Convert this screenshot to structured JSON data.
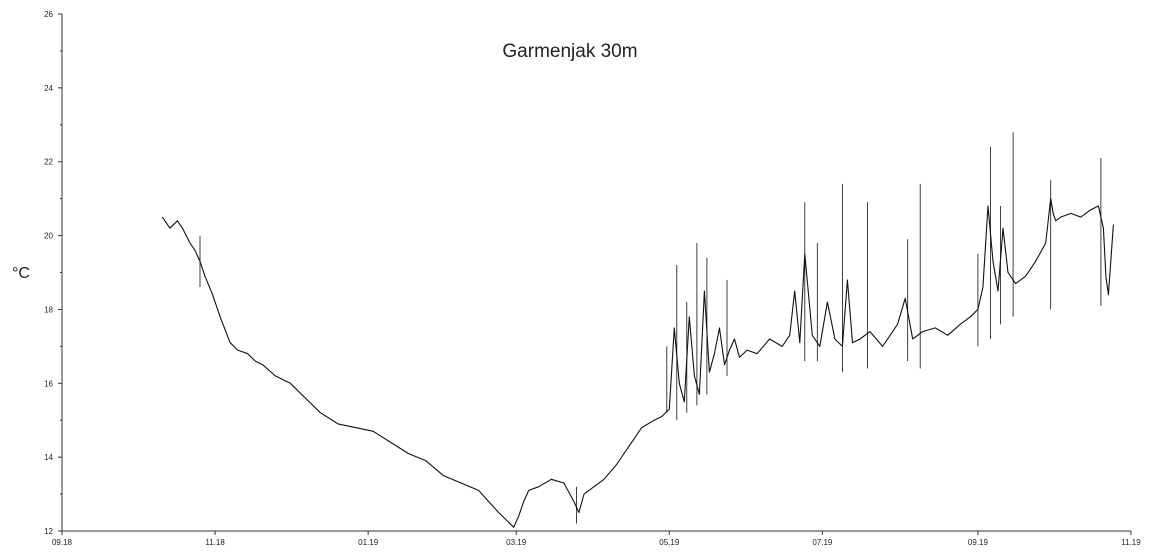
{
  "chart_data": {
    "type": "line",
    "title": "Garmenjak 30m",
    "xlabel": "",
    "ylabel": "°C",
    "x_ticks": [
      "09.18",
      "11.18",
      "01.19",
      "03.19",
      "05.19",
      "07.19",
      "09.19",
      "11.19"
    ],
    "xlim": [
      "2018-09-01",
      "2019-11-01"
    ],
    "y_ticks": [
      "12",
      "14",
      "16",
      "18",
      "20",
      "22",
      "24",
      "26"
    ],
    "ylim": [
      12,
      26
    ],
    "grid": false,
    "colors": {
      "line": "#111111",
      "axis": "#333333"
    },
    "series": [
      {
        "x": [
          "2018-10-11",
          "2018-10-14",
          "2018-10-17",
          "2018-10-19",
          "2018-10-22",
          "2018-10-24",
          "2018-10-26",
          "2018-10-28",
          "2018-10-31",
          "2018-11-03",
          "2018-11-07",
          "2018-11-10",
          "2018-11-14",
          "2018-11-17",
          "2018-11-20",
          "2018-11-25",
          "2018-12-01",
          "2018-12-07",
          "2018-12-13",
          "2018-12-20",
          "2018-12-27",
          "2019-01-03",
          "2019-01-10",
          "2019-01-17",
          "2019-01-24",
          "2019-01-31",
          "2019-02-07",
          "2019-02-14",
          "2019-02-18",
          "2019-02-22",
          "2019-02-25",
          "2019-02-28",
          "2019-03-02",
          "2019-03-04",
          "2019-03-06",
          "2019-03-10",
          "2019-03-15",
          "2019-03-20",
          "2019-03-24",
          "2019-03-26",
          "2019-03-28",
          "2019-04-01",
          "2019-04-05",
          "2019-04-10",
          "2019-04-15",
          "2019-04-20",
          "2019-04-25",
          "2019-04-28",
          "2019-05-01",
          "2019-05-03",
          "2019-05-05",
          "2019-05-07",
          "2019-05-09",
          "2019-05-11",
          "2019-05-13",
          "2019-05-15",
          "2019-05-17",
          "2019-05-19",
          "2019-05-21",
          "2019-05-23",
          "2019-05-25",
          "2019-05-27",
          "2019-05-29",
          "2019-06-01",
          "2019-06-05",
          "2019-06-10",
          "2019-06-15",
          "2019-06-18",
          "2019-06-20",
          "2019-06-22",
          "2019-06-24",
          "2019-06-27",
          "2019-06-30",
          "2019-07-03",
          "2019-07-06",
          "2019-07-09",
          "2019-07-11",
          "2019-07-13",
          "2019-07-16",
          "2019-07-20",
          "2019-07-25",
          "2019-07-28",
          "2019-07-31",
          "2019-08-03",
          "2019-08-06",
          "2019-08-10",
          "2019-08-15",
          "2019-08-20",
          "2019-08-25",
          "2019-08-29",
          "2019-09-01",
          "2019-09-03",
          "2019-09-05",
          "2019-09-07",
          "2019-09-09",
          "2019-09-11",
          "2019-09-13",
          "2019-09-16",
          "2019-09-20",
          "2019-09-24",
          "2019-09-28",
          "2019-09-30",
          "2019-10-01",
          "2019-10-02",
          "2019-10-04",
          "2019-10-08",
          "2019-10-12",
          "2019-10-16",
          "2019-10-19",
          "2019-10-21",
          "2019-10-22",
          "2019-10-23",
          "2019-10-25"
        ],
        "y": [
          20.5,
          20.2,
          20.4,
          20.2,
          19.8,
          19.6,
          19.3,
          18.9,
          18.4,
          17.8,
          17.1,
          16.9,
          16.8,
          16.6,
          16.5,
          16.2,
          16.0,
          15.6,
          15.2,
          14.9,
          14.8,
          14.7,
          14.4,
          14.1,
          13.9,
          13.5,
          13.3,
          13.1,
          12.8,
          12.5,
          12.3,
          12.1,
          12.4,
          12.8,
          13.1,
          13.2,
          13.4,
          13.3,
          12.8,
          12.5,
          13.0,
          13.2,
          13.4,
          13.8,
          14.3,
          14.8,
          15.0,
          15.1,
          15.3,
          17.5,
          16.0,
          15.5,
          17.8,
          16.2,
          15.7,
          18.5,
          16.3,
          16.8,
          17.5,
          16.5,
          16.9,
          17.2,
          16.7,
          16.9,
          16.8,
          17.2,
          17.0,
          17.3,
          18.5,
          17.1,
          19.5,
          17.3,
          17.0,
          18.2,
          17.2,
          17.0,
          18.8,
          17.1,
          17.2,
          17.4,
          17.0,
          17.3,
          17.6,
          18.3,
          17.2,
          17.4,
          17.5,
          17.3,
          17.6,
          17.8,
          18.0,
          18.6,
          20.8,
          19.3,
          18.5,
          20.2,
          19.0,
          18.7,
          18.9,
          19.3,
          19.8,
          21.0,
          20.6,
          20.4,
          20.5,
          20.6,
          20.5,
          20.7,
          20.8,
          20.2,
          18.9,
          18.4,
          20.3
        ],
        "line_width": 1.1
      },
      {
        "x": [
          "2018-10-26",
          "2018-10-26",
          "2019-03-25",
          "2019-03-25",
          "2019-04-30",
          "2019-04-30",
          "2019-05-04",
          "2019-05-04",
          "2019-05-08",
          "2019-05-08",
          "2019-05-12",
          "2019-05-12",
          "2019-05-16",
          "2019-05-16",
          "2019-05-24",
          "2019-05-24",
          "2019-06-24",
          "2019-06-24",
          "2019-06-29",
          "2019-06-29",
          "2019-07-09",
          "2019-07-09",
          "2019-07-19",
          "2019-07-19",
          "2019-08-04",
          "2019-08-04",
          "2019-08-09",
          "2019-08-09",
          "2019-09-01",
          "2019-09-01",
          "2019-09-06",
          "2019-09-06",
          "2019-09-10",
          "2019-09-10",
          "2019-09-15",
          "2019-09-15",
          "2019-09-30",
          "2019-09-30",
          "2019-10-20",
          "2019-10-20"
        ],
        "y": [
          18.6,
          20.0,
          12.2,
          13.2,
          17.0,
          15.2,
          19.2,
          15.0,
          18.2,
          15.2,
          19.8,
          15.4,
          19.4,
          15.7,
          18.8,
          16.2,
          20.9,
          16.6,
          19.8,
          16.6,
          21.4,
          16.3,
          20.9,
          16.4,
          19.9,
          16.6,
          21.4,
          16.4,
          19.5,
          17.0,
          22.4,
          17.2,
          20.8,
          17.6,
          22.8,
          17.8,
          21.5,
          18.0,
          22.1,
          18.1
        ],
        "line_width": 0.8
      }
    ]
  }
}
